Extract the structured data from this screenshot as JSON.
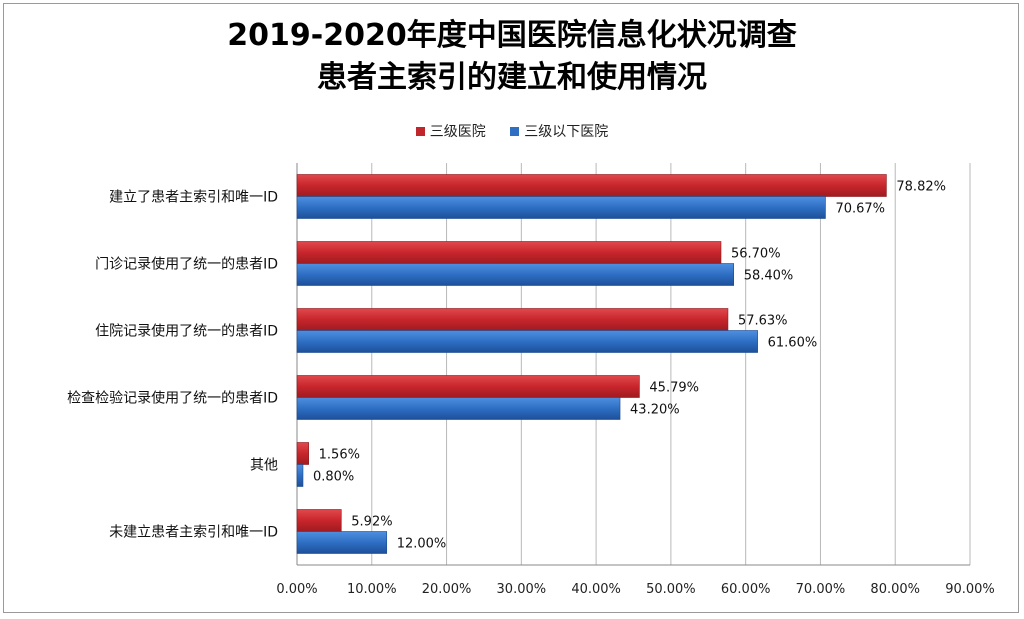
{
  "chart_data": {
    "type": "bar",
    "orientation": "horizontal",
    "title": "2019-2020年度中国医院信息化状况调查",
    "subtitle": "患者主索引的建立和使用情况",
    "categories": [
      "建立了患者主索引和唯一ID",
      "门诊记录使用了统一的患者ID",
      "住院记录使用了统一的患者ID",
      "检查检验记录使用了统一的患者ID",
      "其他",
      "未建立患者主索引和唯一ID"
    ],
    "series": [
      {
        "name": "三级医院",
        "values": [
          78.82,
          56.7,
          57.63,
          45.79,
          1.56,
          5.92
        ],
        "labels": [
          "78.82%",
          "56.70%",
          "57.63%",
          "45.79%",
          "1.56%",
          "5.92%"
        ],
        "color": "#c0272d"
      },
      {
        "name": "三级以下医院",
        "values": [
          70.67,
          58.4,
          61.6,
          43.2,
          0.8,
          12.0
        ],
        "labels": [
          "70.67%",
          "58.40%",
          "61.60%",
          "43.20%",
          "0.80%",
          "12.00%"
        ],
        "color": "#2e6fc4"
      }
    ],
    "xlim": [
      0,
      90
    ],
    "xticks": [
      0,
      10,
      20,
      30,
      40,
      50,
      60,
      70,
      80,
      90
    ],
    "xtick_labels": [
      "0.00%",
      "10.00%",
      "20.00%",
      "30.00%",
      "40.00%",
      "50.00%",
      "60.00%",
      "70.00%",
      "80.00%",
      "90.00%"
    ],
    "grid": true,
    "legend_position": "top"
  }
}
